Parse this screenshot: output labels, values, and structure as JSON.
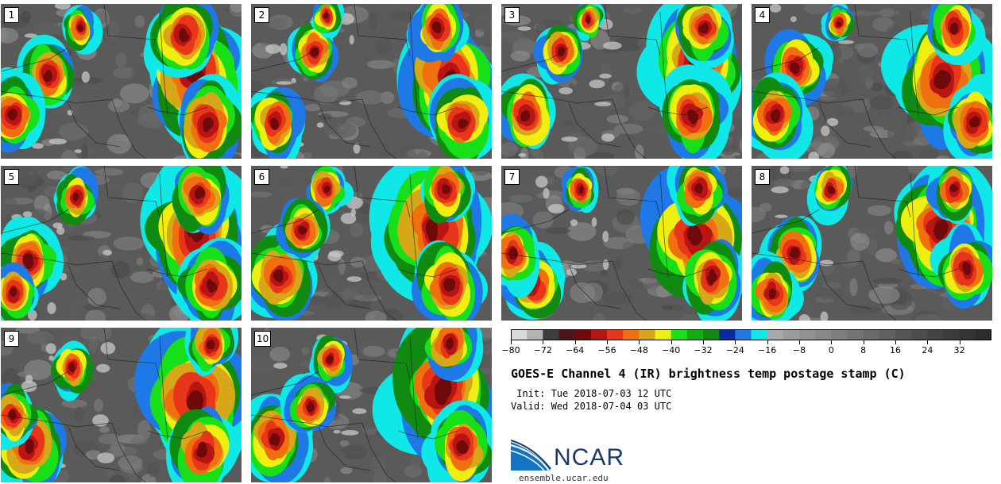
{
  "chart_data": {
    "type": "heatmap",
    "title": "GOES-E Channel 4 (IR) brightness temp postage stamp (C)",
    "init": " Init: Tue 2018-07-03 12 UTC",
    "valid": "Valid: Wed 2018-07-04 03 UTC",
    "units": "C",
    "members": [
      "1",
      "2",
      "3",
      "4",
      "5",
      "6",
      "7",
      "8",
      "9",
      "10"
    ],
    "colorbar": {
      "min": -80,
      "max": 40,
      "tick_labels": [
        -80,
        -72,
        -64,
        -56,
        -48,
        -40,
        -32,
        -24,
        -16,
        -8,
        0,
        8,
        16,
        24,
        32
      ],
      "levels": [
        -80,
        -76,
        -72,
        -68,
        -64,
        -60,
        -56,
        -52,
        -48,
        -44,
        -40,
        -36,
        -32,
        -28,
        -24,
        -20,
        -16,
        -12,
        -8,
        -4,
        0,
        4,
        8,
        12,
        16,
        20,
        24,
        28,
        32,
        36,
        40
      ],
      "colors": [
        "#d9d9d9",
        "#b3b3b3",
        "#3d3d3d",
        "#4a1818",
        "#6e0a0a",
        "#b81414",
        "#e8361a",
        "#f07010",
        "#d6a818",
        "#eeee10",
        "#18e018",
        "#10b010",
        "#108a10",
        "#0a2aa0",
        "#1e78e6",
        "#10e8e8",
        "#a8a8a8",
        "#9c9c9c",
        "#929292",
        "#888888",
        "#7e7e7e",
        "#747474",
        "#6a6a6a",
        "#606060",
        "#565656",
        "#4c4c4c",
        "#444444",
        "#3c3c3c",
        "#343434",
        "#2c2c2c"
      ]
    }
  },
  "logo": {
    "name": "NCAR",
    "url": "ensemble.ucar.edu"
  }
}
